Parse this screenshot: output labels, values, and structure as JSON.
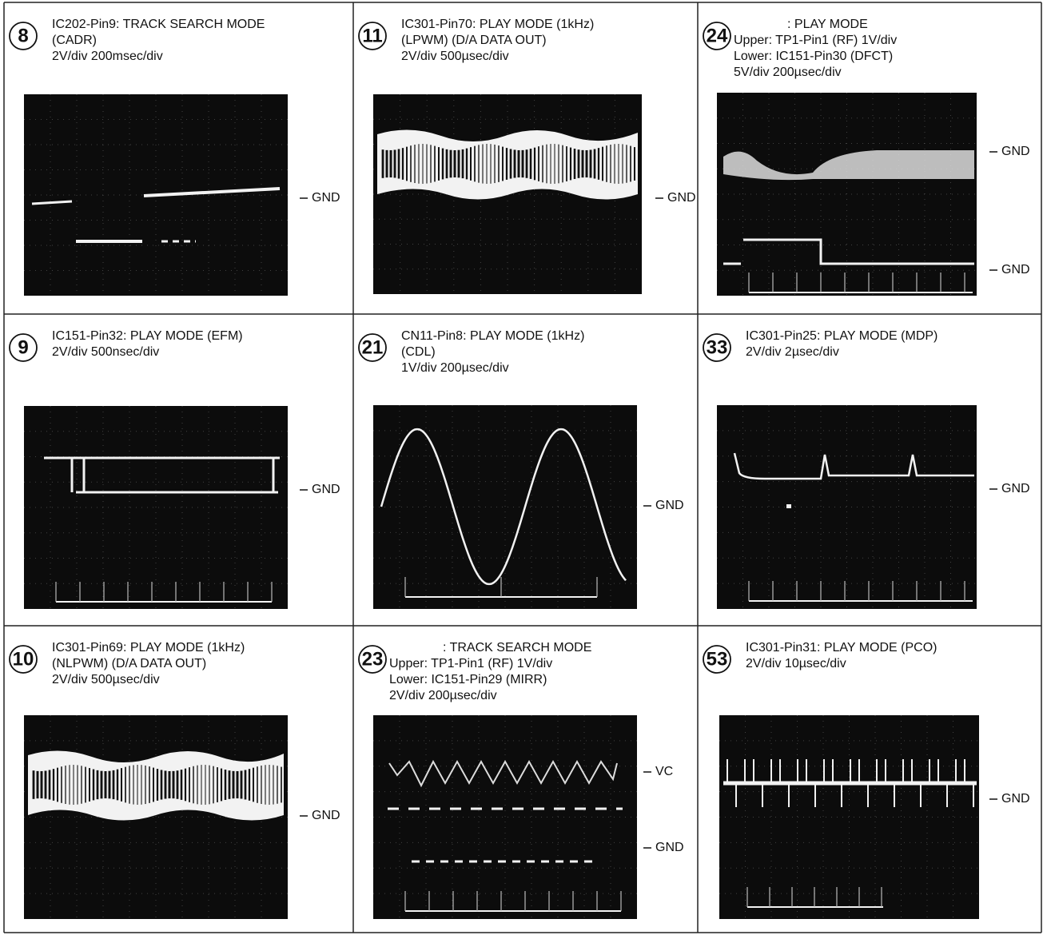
{
  "panels": [
    {
      "number": "8",
      "lines": [
        "IC202-Pin9: TRACK SEARCH MODE",
        "(CADR)",
        "2V/div    200msec/div"
      ],
      "labels": [
        "GND"
      ]
    },
    {
      "number": "11",
      "lines": [
        "IC301-Pin70: PLAY MODE (1kHz)",
        "(LPWM) (D/A DATA OUT)",
        "2V/div    500µsec/div"
      ],
      "labels": [
        "GND"
      ]
    },
    {
      "number": "24",
      "lines": [
        ": PLAY MODE",
        "Upper: TP1-Pin1 (RF) 1V/div",
        "Lower: IC151-Pin30 (DFCT)",
        "5V/div    200µsec/div"
      ],
      "labels": [
        "GND",
        "GND"
      ]
    },
    {
      "number": "9",
      "lines": [
        "IC151-Pin32: PLAY MODE (EFM)",
        "2V/div    500nsec/div"
      ],
      "labels": [
        "GND"
      ]
    },
    {
      "number": "21",
      "lines": [
        "CN11-Pin8: PLAY MODE (1kHz)",
        "(CDL)",
        "1V/div    200µsec/div"
      ],
      "labels": [
        "GND"
      ]
    },
    {
      "number": "33",
      "lines": [
        "IC301-Pin25: PLAY MODE (MDP)",
        "2V/div    2µsec/div"
      ],
      "labels": [
        "GND"
      ]
    },
    {
      "number": "10",
      "lines": [
        "IC301-Pin69: PLAY MODE (1kHz)",
        "(NLPWM) (D/A DATA OUT)",
        "2V/div    500µsec/div"
      ],
      "labels": [
        "GND"
      ]
    },
    {
      "number": "23",
      "lines": [
        ": TRACK SEARCH MODE",
        "Upper: TP1-Pin1 (RF) 1V/div",
        "Lower: IC151-Pin29 (MIRR)",
        "2V/div    200µsec/div"
      ],
      "labels": [
        "VC",
        "GND"
      ]
    },
    {
      "number": "53",
      "lines": [
        "IC301-Pin31: PLAY MODE (PCO)",
        "2V/div    10µsec/div"
      ],
      "labels": [
        "GND"
      ]
    }
  ]
}
